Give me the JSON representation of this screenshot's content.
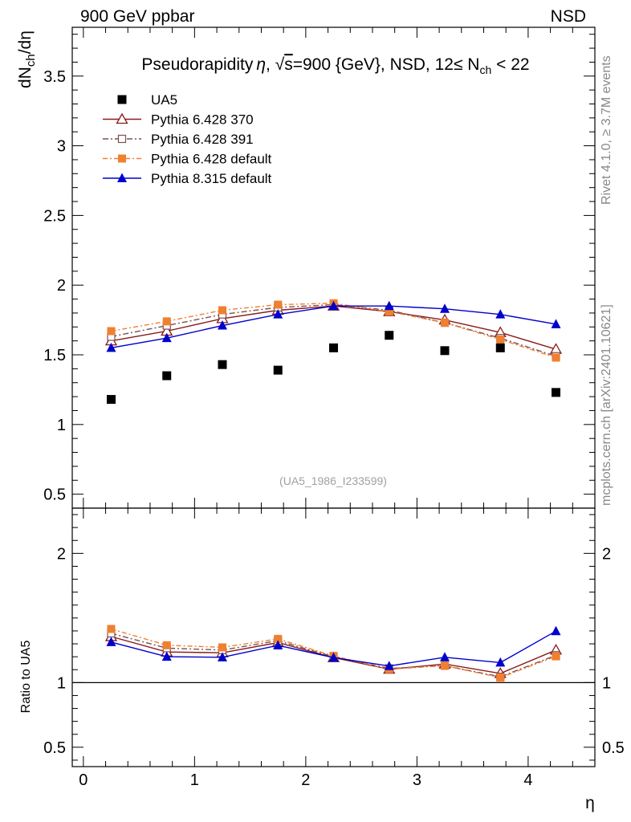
{
  "chart_data": {
    "type": "line",
    "header": {
      "left": "900 GeV ppbar",
      "right": "NSD"
    },
    "title": "Pseudorapidity η, √s=900 {GeV}, NSD, 12≤ N_ch < 22",
    "title_parts": {
      "pre": "Pseudorapidity",
      "eta": "η",
      "mid": ", ",
      "sqrt": "√",
      "s": "s",
      "rest": "=900 {GeV}, NSD, 12",
      "leq": "≤",
      "n": " N",
      "n_sub": "ch",
      "tail": " < 22"
    },
    "ylabel": {
      "pre": "dN",
      "sub": "ch",
      "post": "/dη"
    },
    "ratio_ylabel": "Ratio to UA5",
    "xlabel": "η",
    "watermark": "(UA5_1986_I233599)",
    "side_label_top": "Rivet 4.1.0, ≥ 3.7M events",
    "side_label_bottom": "mcplots.cern.ch [arXiv:2401.10621]",
    "xlim": [
      -0.1,
      4.6
    ],
    "ylim": [
      0.4,
      3.85
    ],
    "ratio_ylim": [
      0.35,
      2.35
    ],
    "x_ticks": [
      "0",
      "1",
      "2",
      "3",
      "4"
    ],
    "y_ticks": [
      "0.5",
      "1",
      "1.5",
      "2",
      "2.5",
      "3",
      "3.5"
    ],
    "ratio_y_ticks": [
      "0.5",
      "1",
      "2"
    ],
    "x": [
      0.25,
      0.75,
      1.25,
      1.75,
      2.25,
      2.75,
      3.25,
      3.75,
      4.25
    ],
    "reference": {
      "name": "UA5",
      "color": "#000000",
      "values": [
        1.18,
        1.35,
        1.43,
        1.39,
        1.55,
        1.64,
        1.53,
        1.55,
        1.23
      ]
    },
    "series": [
      {
        "name": "Pythia 6.428 370",
        "color": "#8b1a1a",
        "dash": "",
        "marker": "triangle-open",
        "values": [
          1.6,
          1.67,
          1.76,
          1.82,
          1.85,
          1.81,
          1.75,
          1.66,
          1.54
        ]
      },
      {
        "name": "Pythia 6.428 391",
        "color": "#7a5050",
        "dash": "7,3,2,3",
        "marker": "square-open",
        "values": [
          1.63,
          1.71,
          1.79,
          1.84,
          1.86,
          1.82,
          1.73,
          1.62,
          1.49
        ]
      },
      {
        "name": "Pythia 6.428 default",
        "color": "#f08030",
        "dash": "6,3,2,3",
        "marker": "square-filled",
        "values": [
          1.67,
          1.74,
          1.82,
          1.86,
          1.87,
          1.81,
          1.73,
          1.61,
          1.48
        ]
      },
      {
        "name": "Pythia 8.315 default",
        "color": "#0000cc",
        "dash": "",
        "marker": "triangle-filled",
        "values": [
          1.55,
          1.62,
          1.71,
          1.79,
          1.85,
          1.85,
          1.83,
          1.79,
          1.72
        ]
      }
    ]
  }
}
